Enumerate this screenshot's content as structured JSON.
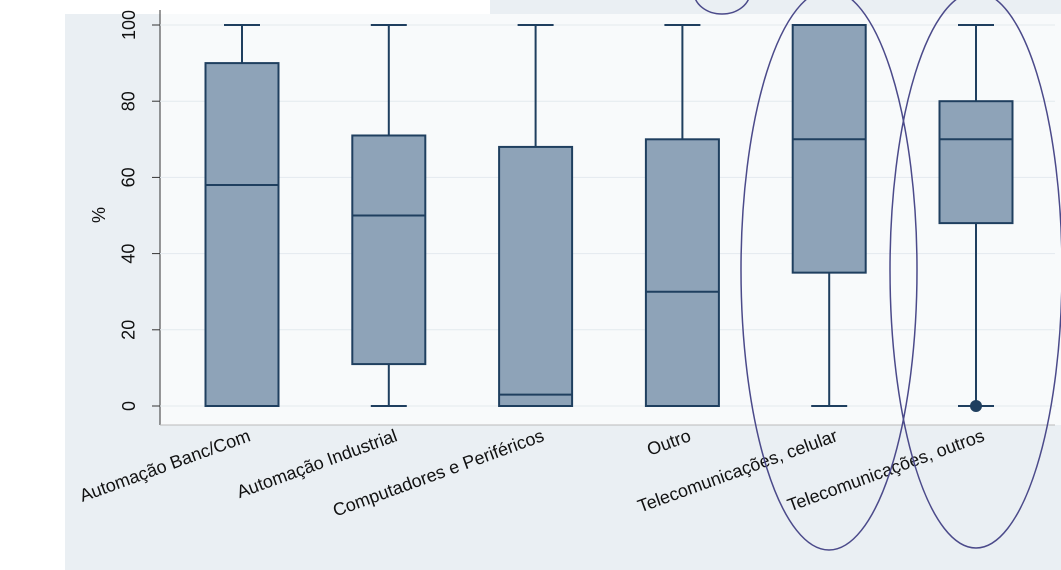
{
  "chart_data": {
    "type": "box",
    "ylabel": "%",
    "categories": [
      "Automação Banc/Com",
      "Automação Industrial",
      "Computadores e Periféricos",
      "Outro",
      "Telecomunicações, celular",
      "Telecomunicações, outros"
    ],
    "min": [
      0,
      0,
      0,
      0,
      0,
      0
    ],
    "q1": [
      0,
      11,
      0,
      0,
      35,
      48
    ],
    "median": [
      58,
      50,
      3,
      30,
      70,
      70
    ],
    "q3": [
      90,
      71,
      68,
      70,
      100,
      80
    ],
    "max": [
      100,
      100,
      100,
      100,
      100,
      100
    ],
    "outliers": [
      [],
      [],
      [],
      [],
      [],
      [
        0
      ]
    ],
    "color": "#8ea3b8",
    "line_color": "#1f3f5f",
    "ylim": [
      0,
      100
    ],
    "yticks": [
      0,
      20,
      40,
      60,
      80,
      100
    ],
    "grid": true
  }
}
